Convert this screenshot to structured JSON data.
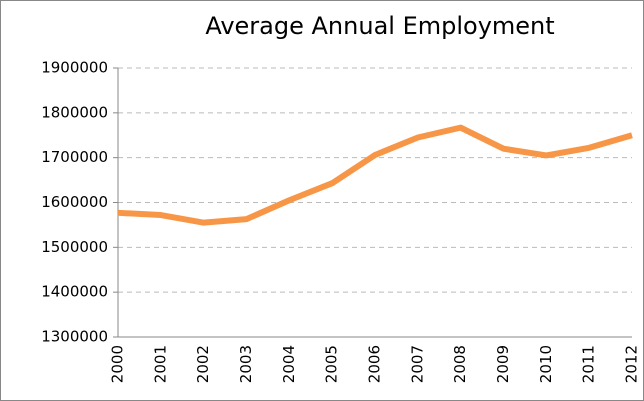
{
  "chart_data": {
    "type": "line",
    "title": "Average Annual Employment",
    "categories": [
      "2000",
      "2001",
      "2002",
      "2003",
      "2004",
      "2005",
      "2006",
      "2007",
      "2008",
      "2009",
      "2010",
      "2011",
      "2012"
    ],
    "series": [
      {
        "name": "Average Annual Employment",
        "color": "#f79646",
        "values": [
          1577000,
          1572000,
          1555000,
          1563000,
          1605000,
          1643000,
          1706000,
          1745000,
          1767000,
          1720000,
          1705000,
          1722000,
          1750000
        ]
      }
    ],
    "ylim": [
      1300000,
      1900000
    ],
    "yticks": [
      1300000,
      1400000,
      1500000,
      1600000,
      1700000,
      1800000,
      1900000
    ],
    "grid": true
  }
}
